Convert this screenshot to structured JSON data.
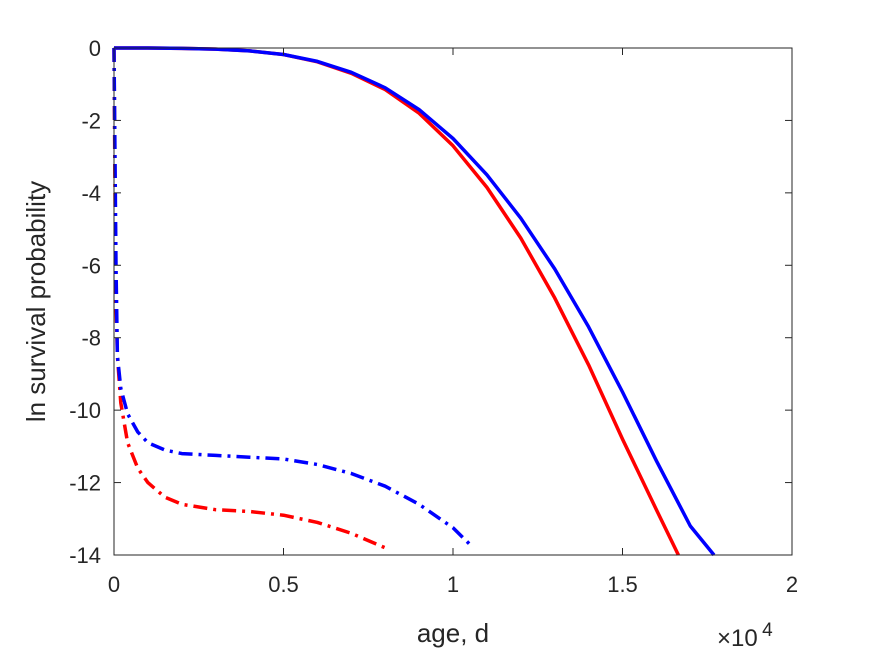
{
  "chart_data": {
    "type": "line",
    "xlabel": "age, d",
    "ylabel": "ln survival probability",
    "x_exponent_label": {
      "base": "×10",
      "power": "4"
    },
    "xlim": [
      0,
      20000
    ],
    "ylim": [
      -14,
      0
    ],
    "x_ticks": [
      0,
      5000,
      10000,
      15000,
      20000
    ],
    "x_tick_labels": [
      "0",
      "0.5",
      "1",
      "1.5",
      "2"
    ],
    "y_ticks": [
      0,
      -2,
      -4,
      -6,
      -8,
      -10,
      -12,
      -14
    ],
    "y_tick_labels": [
      "0",
      "-2",
      "-4",
      "-6",
      "-8",
      "-10",
      "-12",
      "-14"
    ],
    "grid": false,
    "box": true,
    "series": [
      {
        "color": "#ff0000",
        "style": "solid",
        "points": [
          [
            0,
            0
          ],
          [
            1000,
            0
          ],
          [
            2000,
            -0.01
          ],
          [
            3000,
            -0.03
          ],
          [
            4000,
            -0.08
          ],
          [
            5000,
            -0.18
          ],
          [
            6000,
            -0.38
          ],
          [
            7000,
            -0.7
          ],
          [
            8000,
            -1.15
          ],
          [
            9000,
            -1.8
          ],
          [
            10000,
            -2.7
          ],
          [
            11000,
            -3.85
          ],
          [
            12000,
            -5.25
          ],
          [
            13000,
            -6.9
          ],
          [
            14000,
            -8.75
          ],
          [
            15000,
            -10.8
          ],
          [
            16000,
            -12.75
          ],
          [
            16650,
            -14
          ]
        ]
      },
      {
        "color": "#0000ff",
        "style": "solid",
        "points": [
          [
            0,
            0
          ],
          [
            1000,
            0
          ],
          [
            2000,
            -0.01
          ],
          [
            3000,
            -0.03
          ],
          [
            4000,
            -0.08
          ],
          [
            5000,
            -0.18
          ],
          [
            6000,
            -0.37
          ],
          [
            7000,
            -0.67
          ],
          [
            8000,
            -1.1
          ],
          [
            9000,
            -1.7
          ],
          [
            10000,
            -2.5
          ],
          [
            11000,
            -3.5
          ],
          [
            12000,
            -4.7
          ],
          [
            13000,
            -6.1
          ],
          [
            14000,
            -7.7
          ],
          [
            15000,
            -9.5
          ],
          [
            16000,
            -11.4
          ],
          [
            17000,
            -13.2
          ],
          [
            17700,
            -14
          ]
        ]
      },
      {
        "color": "#ff0000",
        "style": "dashdot",
        "points": [
          [
            0,
            0
          ],
          [
            30,
            -4
          ],
          [
            60,
            -7
          ],
          [
            100,
            -8.5
          ],
          [
            200,
            -9.8
          ],
          [
            400,
            -10.9
          ],
          [
            700,
            -11.6
          ],
          [
            1000,
            -12.0
          ],
          [
            1500,
            -12.4
          ],
          [
            2000,
            -12.6
          ],
          [
            3000,
            -12.75
          ],
          [
            4000,
            -12.8
          ],
          [
            5000,
            -12.9
          ],
          [
            6000,
            -13.1
          ],
          [
            7000,
            -13.4
          ],
          [
            8000,
            -13.8
          ],
          [
            8100,
            -13.85
          ]
        ]
      },
      {
        "color": "#0000ff",
        "style": "dashdot",
        "points": [
          [
            0,
            0
          ],
          [
            30,
            -3
          ],
          [
            60,
            -6
          ],
          [
            100,
            -8.5
          ],
          [
            200,
            -9.4
          ],
          [
            400,
            -10.1
          ],
          [
            700,
            -10.6
          ],
          [
            1000,
            -10.9
          ],
          [
            1500,
            -11.1
          ],
          [
            2000,
            -11.2
          ],
          [
            3000,
            -11.25
          ],
          [
            4000,
            -11.3
          ],
          [
            5000,
            -11.35
          ],
          [
            6000,
            -11.5
          ],
          [
            7000,
            -11.75
          ],
          [
            8000,
            -12.1
          ],
          [
            9000,
            -12.6
          ],
          [
            10000,
            -13.25
          ],
          [
            10600,
            -13.8
          ]
        ]
      }
    ]
  }
}
